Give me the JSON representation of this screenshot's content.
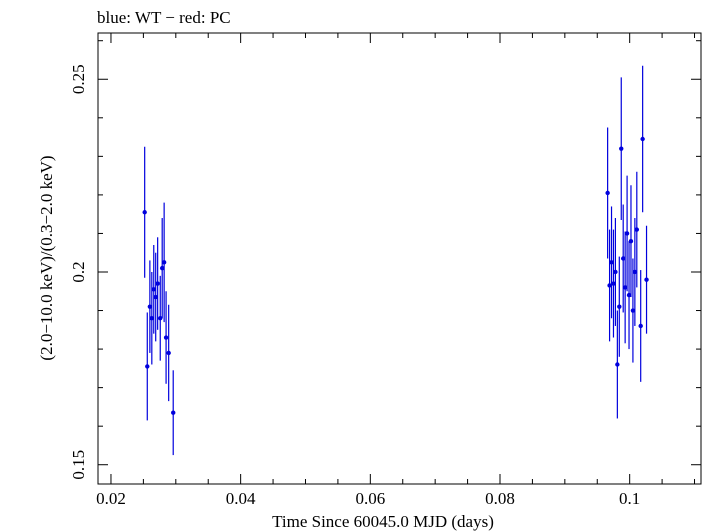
{
  "chart_data": {
    "type": "scatter",
    "title": "blue: WT − red: PC",
    "xlabel": "Time Since 60045.0 MJD (days)",
    "ylabel": "(2.0−10.0 keV)/(0.3−2.0 keV)",
    "xlim": [
      0.018,
      0.111
    ],
    "ylim": [
      0.145,
      0.262
    ],
    "x_ticks": [
      {
        "value": 0.02,
        "label": "0.02"
      },
      {
        "value": 0.04,
        "label": "0.04"
      },
      {
        "value": 0.06,
        "label": "0.06"
      },
      {
        "value": 0.08,
        "label": "0.08"
      },
      {
        "value": 0.1,
        "label": "0.1"
      }
    ],
    "y_ticks": [
      {
        "value": 0.15,
        "label": "0.15"
      },
      {
        "value": 0.2,
        "label": "0.2"
      },
      {
        "value": 0.25,
        "label": "0.25"
      }
    ],
    "grid": false,
    "series": [
      {
        "name": "WT",
        "color": "#0000dd",
        "points": [
          {
            "x": 0.0252,
            "y": 0.2155,
            "err": 0.017
          },
          {
            "x": 0.0256,
            "y": 0.1755,
            "err": 0.014
          },
          {
            "x": 0.026,
            "y": 0.191,
            "err": 0.012
          },
          {
            "x": 0.0263,
            "y": 0.188,
            "err": 0.012
          },
          {
            "x": 0.0266,
            "y": 0.1955,
            "err": 0.0115
          },
          {
            "x": 0.0269,
            "y": 0.1935,
            "err": 0.0115
          },
          {
            "x": 0.0272,
            "y": 0.197,
            "err": 0.012
          },
          {
            "x": 0.0276,
            "y": 0.188,
            "err": 0.011
          },
          {
            "x": 0.0279,
            "y": 0.201,
            "err": 0.013
          },
          {
            "x": 0.0282,
            "y": 0.2025,
            "err": 0.0155
          },
          {
            "x": 0.0285,
            "y": 0.183,
            "err": 0.012
          },
          {
            "x": 0.0289,
            "y": 0.179,
            "err": 0.0125
          },
          {
            "x": 0.0296,
            "y": 0.1635,
            "err": 0.011
          },
          {
            "x": 0.0966,
            "y": 0.2205,
            "err": 0.017
          },
          {
            "x": 0.0969,
            "y": 0.1965,
            "err": 0.0145
          },
          {
            "x": 0.0972,
            "y": 0.2025,
            "err": 0.0145
          },
          {
            "x": 0.0975,
            "y": 0.197,
            "err": 0.014
          },
          {
            "x": 0.0978,
            "y": 0.2,
            "err": 0.014
          },
          {
            "x": 0.0981,
            "y": 0.176,
            "err": 0.014
          },
          {
            "x": 0.0984,
            "y": 0.191,
            "err": 0.013
          },
          {
            "x": 0.0987,
            "y": 0.232,
            "err": 0.0185
          },
          {
            "x": 0.099,
            "y": 0.2035,
            "err": 0.014
          },
          {
            "x": 0.0993,
            "y": 0.196,
            "err": 0.0145
          },
          {
            "x": 0.0996,
            "y": 0.21,
            "err": 0.015
          },
          {
            "x": 0.0999,
            "y": 0.194,
            "err": 0.014
          },
          {
            "x": 0.1002,
            "y": 0.208,
            "err": 0.0145
          },
          {
            "x": 0.1005,
            "y": 0.19,
            "err": 0.0135
          },
          {
            "x": 0.1008,
            "y": 0.2,
            "err": 0.014
          },
          {
            "x": 0.1011,
            "y": 0.211,
            "err": 0.015
          },
          {
            "x": 0.1017,
            "y": 0.186,
            "err": 0.0145
          },
          {
            "x": 0.102,
            "y": 0.2345,
            "err": 0.019
          },
          {
            "x": 0.1026,
            "y": 0.198,
            "err": 0.014
          }
        ]
      }
    ]
  }
}
